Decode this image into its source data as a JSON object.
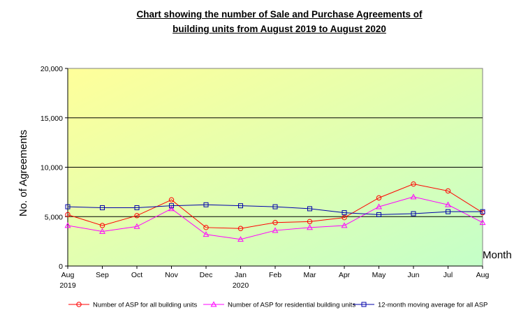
{
  "chart_data": {
    "type": "line",
    "title_line1": "Chart showing the number of  Sale and Purchase Agreements of",
    "title_line2": "building units from August 2019 to August 2020",
    "xlabel": "Month",
    "ylabel": "No. of Agreements",
    "ylim": [
      0,
      20000
    ],
    "yticks": [
      "0",
      "5,000",
      "10,000",
      "15,000",
      "20,000"
    ],
    "categories": [
      "Aug",
      "Sep",
      "Oct",
      "Nov",
      "Dec",
      "Jan",
      "Feb",
      "Mar",
      "Apr",
      "May",
      "Jun",
      "Jul",
      "Aug"
    ],
    "year_labels": [
      "2019",
      "",
      "",
      "",
      "",
      "2020",
      "",
      "",
      "",
      "",
      "",
      "",
      ""
    ],
    "grid": true,
    "legend_position": "bottom",
    "series": [
      {
        "name": "Number of ASP for all building units",
        "color": "#ff0000",
        "marker": "circle",
        "values": [
          5200,
          4100,
          5100,
          6700,
          3900,
          3800,
          4400,
          4500,
          4900,
          6900,
          8300,
          7600,
          5400
        ]
      },
      {
        "name": "Number of ASP for residential building units",
        "color": "#ff00ff",
        "marker": "triangle",
        "values": [
          4100,
          3500,
          4000,
          5800,
          3200,
          2700,
          3600,
          3900,
          4100,
          6000,
          7000,
          6200,
          4400
        ]
      },
      {
        "name": "12-month moving average for all ASP",
        "color": "#0000aa",
        "marker": "square",
        "values": [
          6000,
          5900,
          5900,
          6100,
          6200,
          6100,
          6000,
          5800,
          5400,
          5200,
          5300,
          5500,
          5500
        ]
      }
    ]
  }
}
